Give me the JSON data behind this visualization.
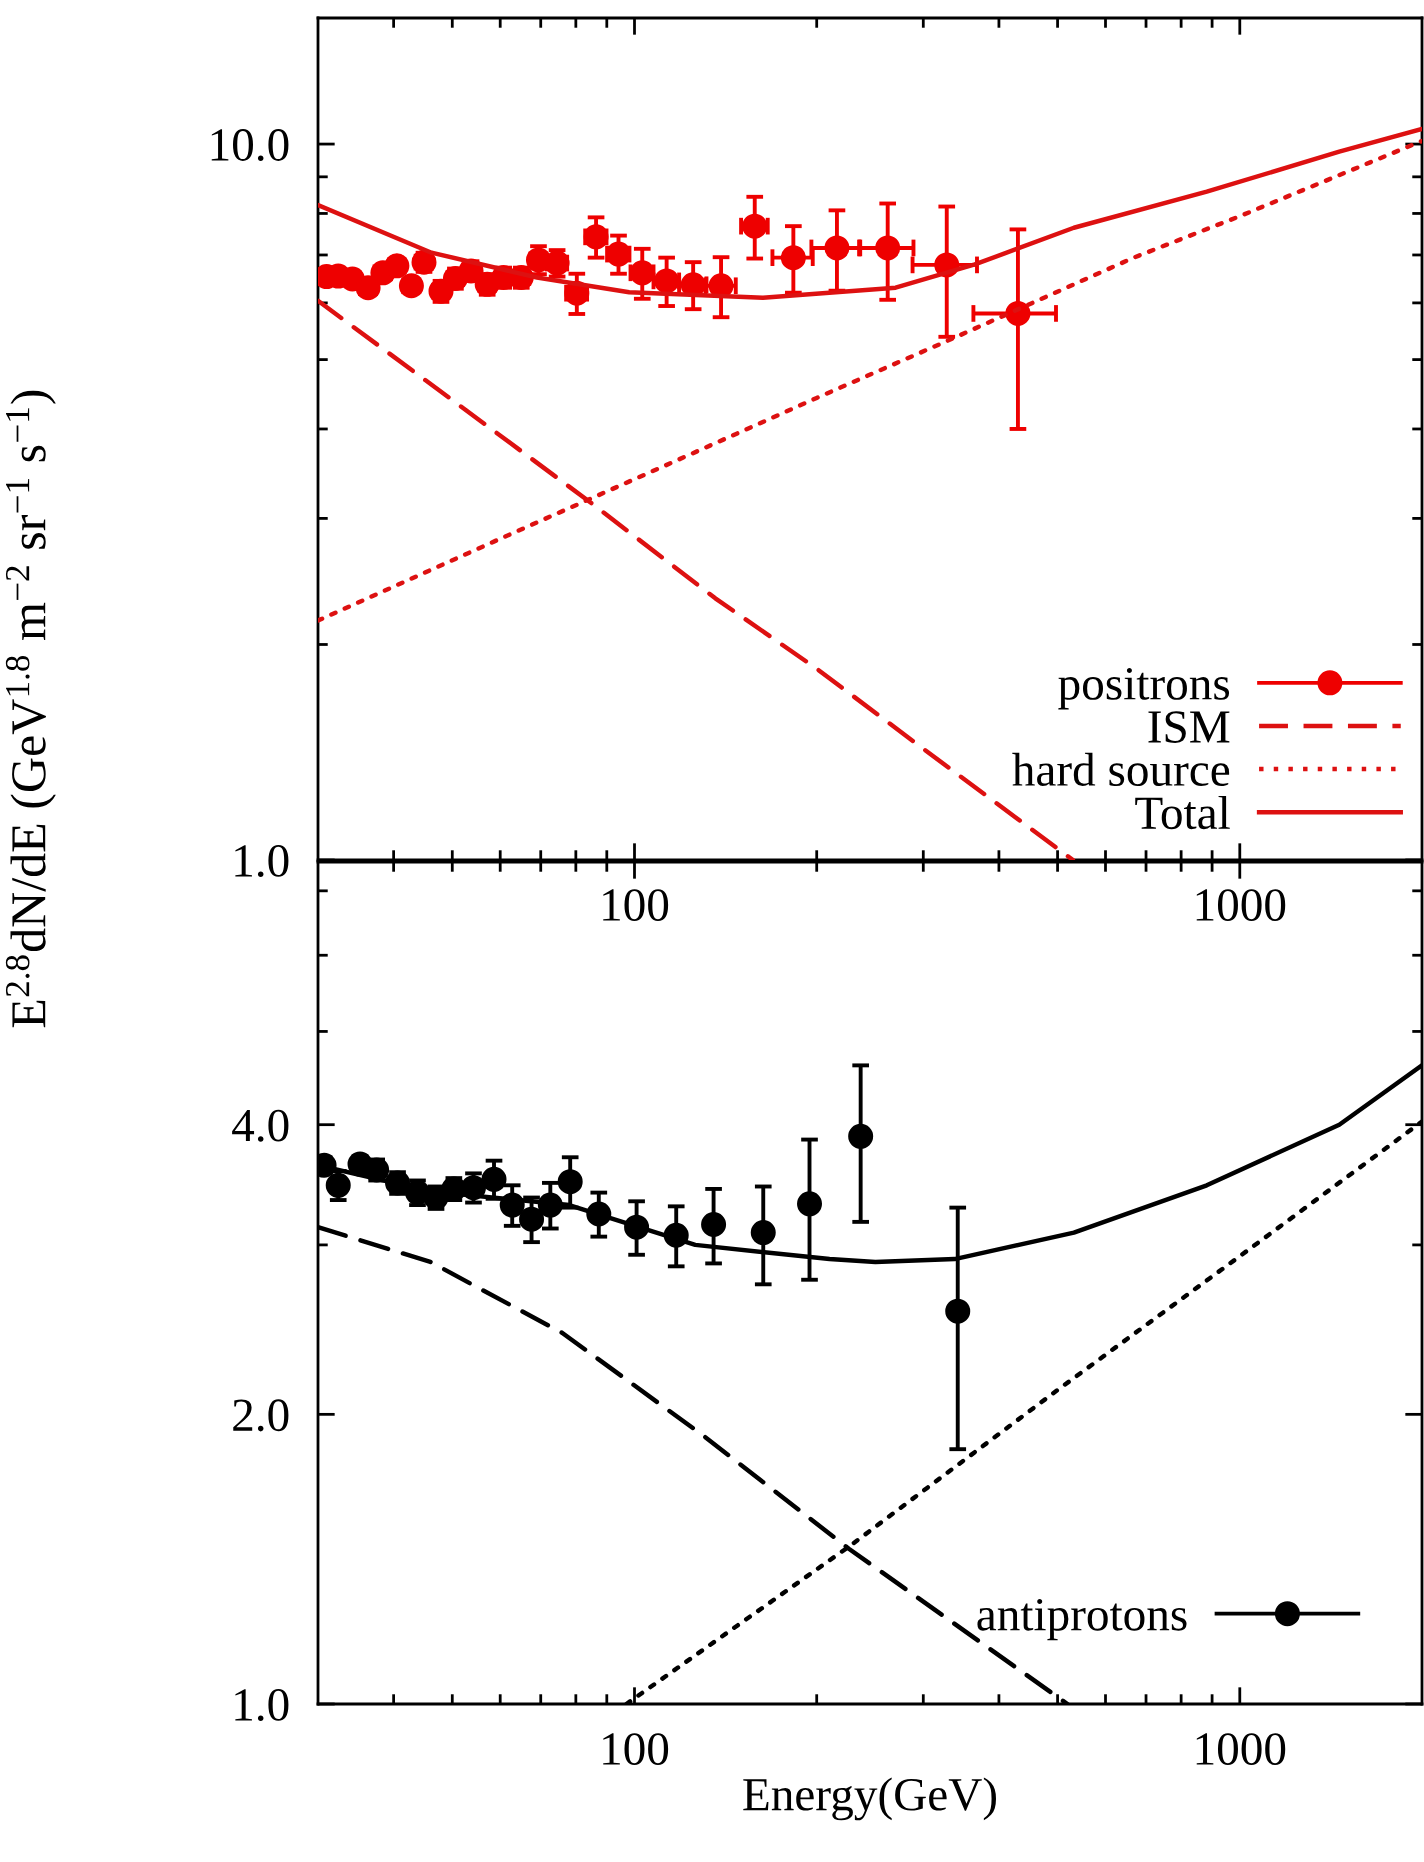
{
  "chart_data": [
    {
      "type": "line",
      "log": "xy",
      "xlim": [
        30,
        2000
      ],
      "ylim": [
        1,
        15
      ],
      "xticks": [
        {
          "value": 40,
          "label": null
        },
        {
          "value": 50,
          "label": null
        },
        {
          "value": 60,
          "label": null
        },
        {
          "value": 70,
          "label": null
        },
        {
          "value": 80,
          "label": null
        },
        {
          "value": 90,
          "label": null
        },
        100,
        {
          "value": 200,
          "label": null
        },
        {
          "value": 300,
          "label": null
        },
        {
          "value": 400,
          "label": null
        },
        {
          "value": 500,
          "label": null
        },
        {
          "value": 600,
          "label": null
        },
        {
          "value": 700,
          "label": null
        },
        {
          "value": 800,
          "label": null
        },
        {
          "value": 900,
          "label": null
        },
        1000
      ],
      "yticks": [
        {
          "value": 1,
          "label": "1.0"
        },
        {
          "value": 2,
          "label": null
        },
        {
          "value": 3,
          "label": null
        },
        {
          "value": 4,
          "label": null
        },
        {
          "value": 5,
          "label": null
        },
        {
          "value": 6,
          "label": null
        },
        {
          "value": 7,
          "label": null
        },
        {
          "value": 8,
          "label": null
        },
        {
          "value": 9,
          "label": null
        },
        {
          "value": 10,
          "label": "10.0"
        }
      ],
      "ylabel": "E$^{2.8}$dN/dE (GeV$^{1.8}$ m$^{−2}$ sr$^{−1}$ s$^{−1}$)",
      "legend": "bottom right",
      "series": [
        {
          "name": "positrons",
          "type": "scatter",
          "marker": "circle",
          "color": "#ee0000",
          "x": [
            31,
            32.4,
            34.2,
            36.3,
            38.4,
            40.5,
            42.8,
            44.9,
            47.9,
            50.6,
            53.7,
            57.1,
            60.8,
            65,
            69.4,
            74.5,
            80.3,
            86.4,
            94.1,
            103,
            113,
            125,
            139,
            158,
            183,
            216,
            262,
            328,
            430
          ],
          "values": [
            6.53,
            6.54,
            6.48,
            6.3,
            6.61,
            6.76,
            6.34,
            6.84,
            6.23,
            6.49,
            6.65,
            6.37,
            6.51,
            6.51,
            6.89,
            6.82,
            6.19,
            7.42,
            7.02,
            6.61,
            6.44,
            6.36,
            6.34,
            7.68,
            6.94,
            7.16,
            7.16,
            6.78,
            5.8
          ],
          "errors": [
            0.15,
            0.15,
            0.15,
            0.15,
            0.15,
            0.15,
            0.15,
            0.21,
            0.21,
            0.21,
            0.21,
            0.21,
            0.21,
            0.21,
            0.31,
            0.29,
            0.4,
            0.48,
            0.43,
            0.53,
            0.5,
            0.48,
            0.61,
            0.76,
            0.74,
            0.92,
            1.1,
            1.4,
            1.8
          ],
          "xerrors": [
            1,
            1,
            1,
            1.1,
            1.2,
            1.2,
            1.3,
            1.4,
            1.4,
            1.5,
            1.6,
            1.7,
            1.8,
            2,
            2.1,
            2.9,
            3.2,
            3.5,
            4,
            4.5,
            5.5,
            6.5,
            8,
            8,
            14,
            20,
            27,
            40,
            67
          ]
        },
        {
          "name": "ISM",
          "type": "line",
          "line_style": "dashed",
          "color": "#dd1111",
          "x": [
            30,
            50,
            84.5,
            136,
            200,
            300,
            530
          ],
          "values": [
            6.04,
            4.39,
            3.16,
            2.32,
            1.85,
            1.43,
            1.0
          ]
        },
        {
          "name": "hard source",
          "type": "line",
          "line_style": "dotted",
          "color": "#dd1111",
          "x": [
            30,
            60,
            117,
            200,
            327,
            668,
            1000,
            2000
          ],
          "values": [
            2.16,
            2.81,
            3.61,
            4.42,
            5.3,
            6.94,
            7.93,
            10.1
          ]
        },
        {
          "name": "Total",
          "type": "line",
          "line_style": "solid",
          "color": "#dd1111",
          "x": [
            30,
            46,
            69,
            98,
            163,
            270,
            365,
            532,
            882,
            1460,
            2000
          ],
          "values": [
            8.22,
            7.06,
            6.51,
            6.21,
            6.1,
            6.3,
            6.79,
            7.64,
            8.58,
            9.76,
            10.5
          ]
        }
      ]
    },
    {
      "type": "line",
      "log": "xy",
      "xlim": [
        30,
        2000
      ],
      "ylim": [
        1,
        7.5
      ],
      "xticks": [
        {
          "value": 40,
          "label": null
        },
        {
          "value": 50,
          "label": null
        },
        {
          "value": 60,
          "label": null
        },
        {
          "value": 70,
          "label": null
        },
        {
          "value": 80,
          "label": null
        },
        {
          "value": 90,
          "label": null
        },
        100,
        {
          "value": 200,
          "label": null
        },
        {
          "value": 300,
          "label": null
        },
        {
          "value": 400,
          "label": null
        },
        {
          "value": 500,
          "label": null
        },
        {
          "value": 600,
          "label": null
        },
        {
          "value": 700,
          "label": null
        },
        {
          "value": 800,
          "label": null
        },
        {
          "value": 900,
          "label": null
        },
        1000
      ],
      "yticks": [
        {
          "value": 1,
          "label": "1.0"
        },
        {
          "value": 2,
          "label": "2.0"
        },
        {
          "value": 3,
          "label": null
        },
        {
          "value": 4,
          "label": "4.0"
        },
        {
          "value": 5,
          "label": null
        },
        {
          "value": 6,
          "label": null
        },
        {
          "value": 7,
          "label": null
        }
      ],
      "xlabel": "Energy(GeV)",
      "legend": "bottom right",
      "series": [
        {
          "name": "antiprotons",
          "type": "scatter",
          "marker": "circle",
          "color": "#000000",
          "x": [
            30.7,
            32.4,
            35.2,
            37.5,
            40.6,
            43.8,
            47.0,
            50.3,
            54.2,
            58.6,
            62.8,
            67.6,
            72.6,
            78.3,
            87.3,
            100.8,
            117.2,
            135.1,
            163.2,
            194.6,
            236.4,
            342
          ],
          "values": [
            3.63,
            3.46,
            3.64,
            3.59,
            3.48,
            3.4,
            3.36,
            3.43,
            3.44,
            3.51,
            3.3,
            3.19,
            3.3,
            3.49,
            3.23,
            3.13,
            3.07,
            3.15,
            3.09,
            3.31,
            3.89,
            2.56
          ],
          "errors": [
            0.07,
            0.12,
            0.07,
            0.09,
            0.09,
            0.1,
            0.09,
            0.09,
            0.12,
            0.16,
            0.16,
            0.17,
            0.18,
            0.21,
            0.17,
            0.2,
            0.22,
            0.28,
            0.36,
            0.55,
            0.72,
            0.72
          ]
        },
        {
          "type": "line",
          "line_style": "dashed",
          "color": "#000000",
          "x": [
            30,
            46,
            76,
            130,
            226,
            519
          ],
          "values": [
            3.13,
            2.88,
            2.43,
            1.9,
            1.45,
            1.0
          ]
        },
        {
          "type": "line",
          "line_style": "dotted",
          "color": "#000000",
          "x": [
            97,
            227,
            500,
            1000,
            2000
          ],
          "values": [
            1.0,
            1.46,
            2.12,
            2.92,
            4.03
          ]
        },
        {
          "type": "line",
          "line_style": "solid",
          "color": "#000000",
          "x": [
            30,
            46,
            78,
            126,
            210,
            250,
            338,
            532,
            882,
            1460,
            2000
          ],
          "values": [
            3.63,
            3.41,
            3.3,
            3.0,
            2.9,
            2.88,
            2.9,
            3.09,
            3.46,
            4.0,
            4.61
          ]
        }
      ]
    }
  ]
}
